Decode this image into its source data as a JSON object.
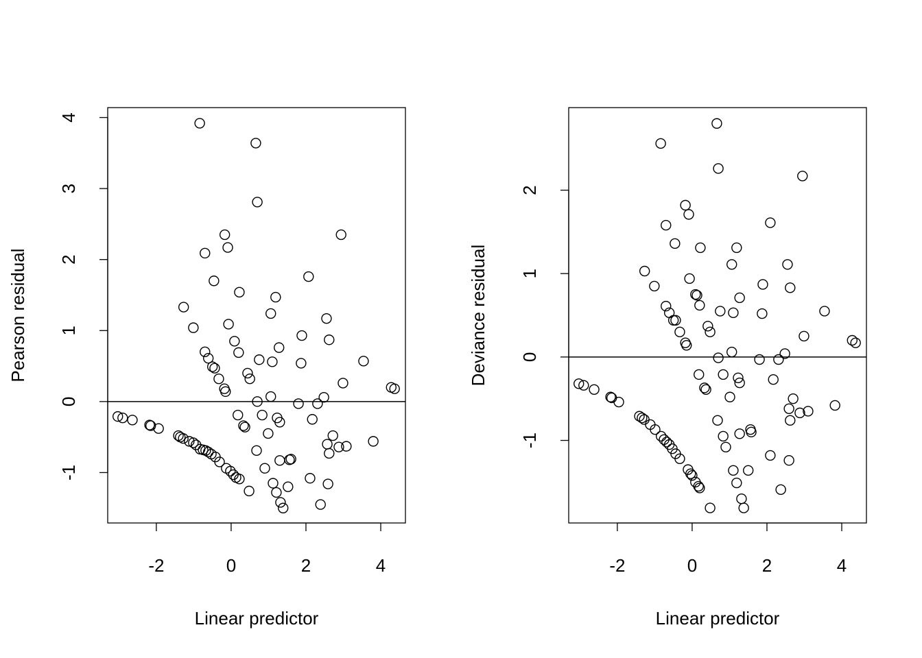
{
  "chart_data": [
    {
      "type": "scatter",
      "xlabel": "Linear predictor",
      "ylabel": "Pearson residual",
      "xlim": [
        -3.3,
        4.66
      ],
      "ylim": [
        -1.71,
        4.14
      ],
      "xticks": [
        -2,
        0,
        2,
        4
      ],
      "yticks": [
        -1,
        0,
        1,
        2,
        3,
        4
      ],
      "reference_line_y": 0,
      "grid": false,
      "marker": "open-circle",
      "points": [
        [
          -0.84,
          3.92
        ],
        [
          0.66,
          3.64
        ],
        [
          0.7,
          2.81
        ],
        [
          -0.17,
          2.35
        ],
        [
          2.94,
          2.35
        ],
        [
          -0.7,
          2.09
        ],
        [
          -0.09,
          2.17
        ],
        [
          2.07,
          1.76
        ],
        [
          -0.46,
          1.7
        ],
        [
          0.22,
          1.54
        ],
        [
          1.19,
          1.47
        ],
        [
          -1.27,
          1.33
        ],
        [
          1.06,
          1.24
        ],
        [
          2.55,
          1.17
        ],
        [
          -0.07,
          1.09
        ],
        [
          -1.01,
          1.04
        ],
        [
          0.09,
          0.85
        ],
        [
          2.62,
          0.87
        ],
        [
          1.89,
          0.93
        ],
        [
          0.2,
          0.69
        ],
        [
          1.28,
          0.76
        ],
        [
          -0.7,
          0.7
        ],
        [
          3.54,
          0.57
        ],
        [
          0.75,
          0.59
        ],
        [
          1.1,
          0.56
        ],
        [
          1.87,
          0.54
        ],
        [
          -0.61,
          0.61
        ],
        [
          -0.5,
          0.49
        ],
        [
          -0.44,
          0.47
        ],
        [
          0.44,
          0.4
        ],
        [
          0.5,
          0.32
        ],
        [
          -0.33,
          0.32
        ],
        [
          2.99,
          0.26
        ],
        [
          -0.18,
          0.18
        ],
        [
          -0.15,
          0.14
        ],
        [
          4.28,
          0.2
        ],
        [
          4.37,
          0.18
        ],
        [
          1.06,
          0.07
        ],
        [
          0.7,
          0.0
        ],
        [
          2.48,
          0.06
        ],
        [
          1.8,
          -0.03
        ],
        [
          2.31,
          -0.03
        ],
        [
          -3.03,
          -0.21
        ],
        [
          -2.9,
          -0.23
        ],
        [
          -2.64,
          -0.26
        ],
        [
          -2.18,
          -0.33
        ],
        [
          -2.15,
          -0.34
        ],
        [
          -1.94,
          -0.38
        ],
        [
          0.18,
          -0.19
        ],
        [
          2.17,
          -0.25
        ],
        [
          0.83,
          -0.19
        ],
        [
          1.23,
          -0.23
        ],
        [
          1.3,
          -0.29
        ],
        [
          0.33,
          -0.34
        ],
        [
          0.37,
          -0.36
        ],
        [
          0.99,
          -0.45
        ],
        [
          2.72,
          -0.48
        ],
        [
          3.8,
          -0.56
        ],
        [
          2.57,
          -0.6
        ],
        [
          3.08,
          -0.63
        ],
        [
          2.88,
          -0.64
        ],
        [
          2.62,
          -0.73
        ],
        [
          -1.41,
          -0.48
        ],
        [
          -1.36,
          -0.5
        ],
        [
          -1.28,
          -0.52
        ],
        [
          -1.12,
          -0.56
        ],
        [
          -1.01,
          -0.58
        ],
        [
          -0.94,
          -0.61
        ],
        [
          -0.83,
          -0.67
        ],
        [
          -0.75,
          -0.68
        ],
        [
          -0.68,
          -0.69
        ],
        [
          -0.61,
          -0.71
        ],
        [
          -0.53,
          -0.74
        ],
        [
          -0.42,
          -0.78
        ],
        [
          -0.31,
          -0.85
        ],
        [
          0.68,
          -0.69
        ],
        [
          1.56,
          -0.82
        ],
        [
          1.6,
          -0.81
        ],
        [
          1.3,
          -0.83
        ],
        [
          0.9,
          -0.94
        ],
        [
          -0.13,
          -0.94
        ],
        [
          -0.02,
          -0.98
        ],
        [
          0.06,
          -1.03
        ],
        [
          0.13,
          -1.07
        ],
        [
          0.22,
          -1.09
        ],
        [
          2.11,
          -1.08
        ],
        [
          1.12,
          -1.15
        ],
        [
          2.59,
          -1.16
        ],
        [
          1.52,
          -1.2
        ],
        [
          0.48,
          -1.26
        ],
        [
          1.21,
          -1.28
        ],
        [
          1.32,
          -1.42
        ],
        [
          2.39,
          -1.45
        ],
        [
          1.39,
          -1.5
        ]
      ]
    },
    {
      "type": "scatter",
      "xlabel": "Linear predictor",
      "ylabel": "Deviance residual",
      "xlim": [
        -3.3,
        4.66
      ],
      "ylim": [
        -1.99,
        2.99
      ],
      "xticks": [
        -2,
        0,
        2,
        4
      ],
      "yticks": [
        -1,
        0,
        1,
        2
      ],
      "reference_line_y": 0,
      "grid": false,
      "marker": "open-circle",
      "points": [
        [
          0.66,
          2.8
        ],
        [
          -0.84,
          2.56
        ],
        [
          0.7,
          2.26
        ],
        [
          2.95,
          2.17
        ],
        [
          -0.18,
          1.82
        ],
        [
          -0.09,
          1.71
        ],
        [
          2.09,
          1.61
        ],
        [
          -0.7,
          1.58
        ],
        [
          -0.46,
          1.36
        ],
        [
          1.19,
          1.31
        ],
        [
          0.22,
          1.31
        ],
        [
          1.06,
          1.11
        ],
        [
          2.55,
          1.11
        ],
        [
          -1.27,
          1.03
        ],
        [
          -0.07,
          0.94
        ],
        [
          1.89,
          0.87
        ],
        [
          -1.01,
          0.85
        ],
        [
          2.62,
          0.83
        ],
        [
          0.09,
          0.75
        ],
        [
          0.13,
          0.74
        ],
        [
          1.27,
          0.71
        ],
        [
          0.2,
          0.62
        ],
        [
          -0.7,
          0.61
        ],
        [
          -0.61,
          0.53
        ],
        [
          0.75,
          0.55
        ],
        [
          1.1,
          0.53
        ],
        [
          1.87,
          0.52
        ],
        [
          3.54,
          0.55
        ],
        [
          -0.5,
          0.44
        ],
        [
          -0.44,
          0.44
        ],
        [
          0.42,
          0.37
        ],
        [
          0.48,
          0.3
        ],
        [
          -0.33,
          0.3
        ],
        [
          2.99,
          0.25
        ],
        [
          -0.18,
          0.17
        ],
        [
          -0.15,
          0.14
        ],
        [
          4.28,
          0.2
        ],
        [
          4.37,
          0.17
        ],
        [
          1.06,
          0.06
        ],
        [
          2.48,
          0.04
        ],
        [
          0.7,
          -0.01
        ],
        [
          1.8,
          -0.03
        ],
        [
          2.31,
          -0.03
        ],
        [
          -3.03,
          -0.32
        ],
        [
          -2.9,
          -0.34
        ],
        [
          -2.62,
          -0.39
        ],
        [
          -2.18,
          -0.48
        ],
        [
          -2.15,
          -0.49
        ],
        [
          -1.96,
          -0.54
        ],
        [
          0.18,
          -0.21
        ],
        [
          0.83,
          -0.21
        ],
        [
          1.23,
          -0.25
        ],
        [
          2.17,
          -0.27
        ],
        [
          1.27,
          -0.31
        ],
        [
          0.33,
          -0.37
        ],
        [
          0.37,
          -0.39
        ],
        [
          1.01,
          -0.48
        ],
        [
          2.7,
          -0.5
        ],
        [
          3.82,
          -0.58
        ],
        [
          2.59,
          -0.62
        ],
        [
          3.1,
          -0.65
        ],
        [
          2.88,
          -0.67
        ],
        [
          2.62,
          -0.76
        ],
        [
          0.68,
          -0.76
        ],
        [
          -1.41,
          -0.71
        ],
        [
          -1.34,
          -0.73
        ],
        [
          -1.28,
          -0.75
        ],
        [
          -1.12,
          -0.81
        ],
        [
          -0.99,
          -0.87
        ],
        [
          -0.83,
          -0.95
        ],
        [
          -0.75,
          -0.99
        ],
        [
          -0.68,
          -1.02
        ],
        [
          -0.61,
          -1.05
        ],
        [
          -0.53,
          -1.1
        ],
        [
          -0.44,
          -1.16
        ],
        [
          -0.33,
          -1.22
        ],
        [
          1.56,
          -0.87
        ],
        [
          1.58,
          -0.9
        ],
        [
          1.27,
          -0.92
        ],
        [
          0.83,
          -0.95
        ],
        [
          0.9,
          -1.08
        ],
        [
          -0.11,
          -1.35
        ],
        [
          -0.04,
          -1.4
        ],
        [
          0.0,
          -1.42
        ],
        [
          0.09,
          -1.5
        ],
        [
          0.17,
          -1.55
        ],
        [
          0.2,
          -1.57
        ],
        [
          2.09,
          -1.18
        ],
        [
          2.59,
          -1.24
        ],
        [
          1.1,
          -1.36
        ],
        [
          1.5,
          -1.36
        ],
        [
          1.19,
          -1.51
        ],
        [
          2.37,
          -1.59
        ],
        [
          1.32,
          -1.7
        ],
        [
          0.48,
          -1.81
        ],
        [
          1.38,
          -1.81
        ]
      ]
    }
  ]
}
